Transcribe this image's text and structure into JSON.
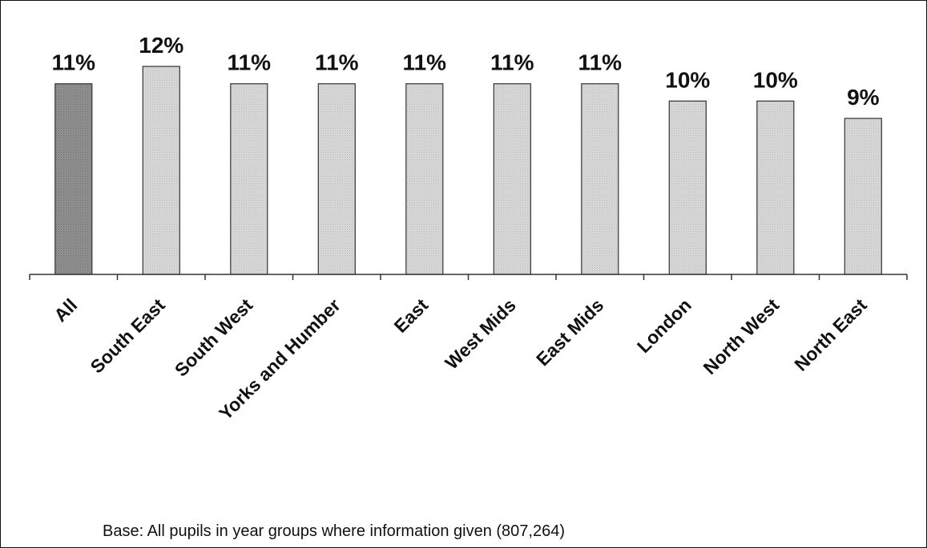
{
  "chart_data": {
    "type": "bar",
    "categories": [
      "All",
      "South East",
      "South West",
      "Yorks and Humber",
      "East",
      "West Mids",
      "East Mids",
      "London",
      "North West",
      "North East"
    ],
    "values": [
      11,
      12,
      11,
      11,
      11,
      11,
      11,
      10,
      10,
      9
    ],
    "value_labels": [
      "11%",
      "12%",
      "11%",
      "11%",
      "11%",
      "11%",
      "11%",
      "10%",
      "10%",
      "9%"
    ],
    "ylim": [
      0,
      15
    ],
    "grid": false,
    "legend": "none",
    "highlight_index": 0,
    "colors": {
      "highlight_fill": "#8f8f8f",
      "bar_fill": "#d6d6d6",
      "bar_stroke": "#333333",
      "axis": "#333333"
    }
  },
  "footnote": "Base: All pupils in year groups where information given (807,264)"
}
